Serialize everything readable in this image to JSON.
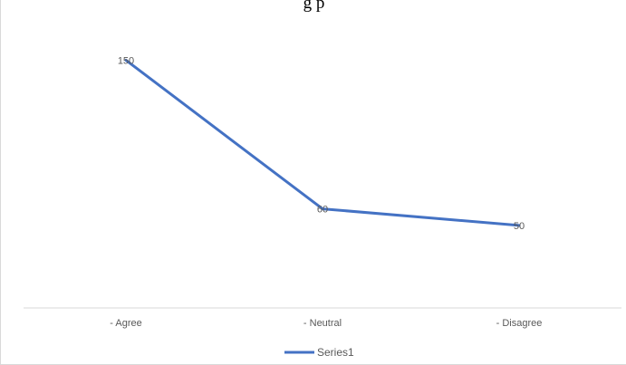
{
  "header": {
    "title_fragment": "g                                 p"
  },
  "chart_data": {
    "type": "line",
    "categories": [
      "- Agree",
      "- Neutral",
      "- Disagree"
    ],
    "series": [
      {
        "name": "Series1",
        "values": [
          150,
          60,
          50
        ],
        "color": "#4472C4"
      }
    ],
    "data_labels": [
      "150",
      "60",
      "50"
    ],
    "ylim": [
      0,
      170
    ],
    "grid": false,
    "legend": "bottom"
  }
}
